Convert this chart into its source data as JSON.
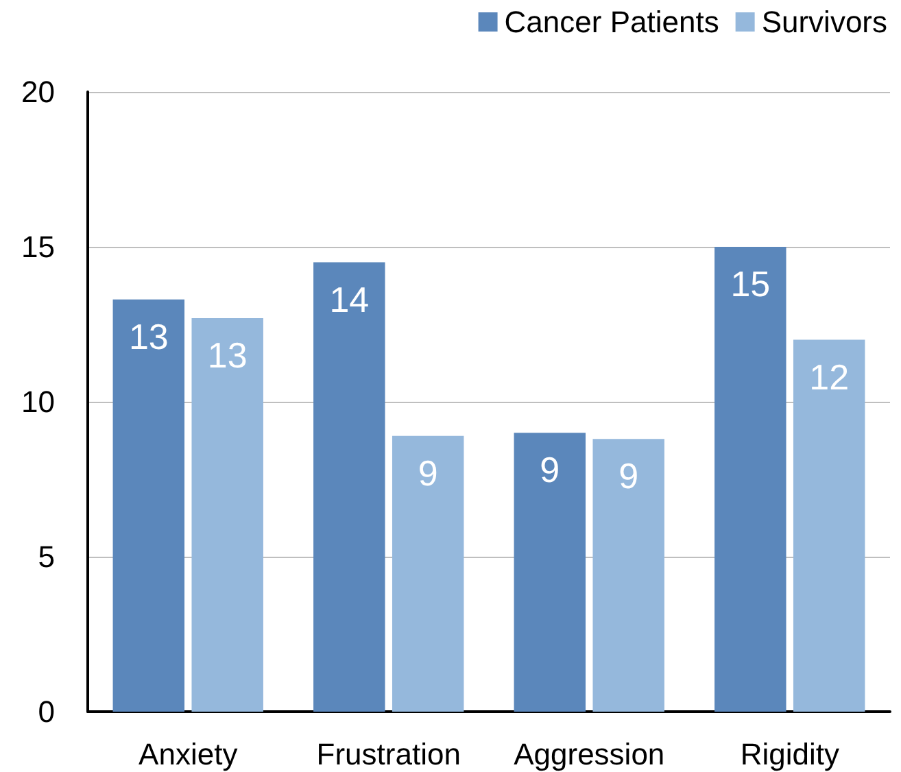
{
  "chart_data": {
    "type": "bar",
    "categories": [
      "Anxiety",
      "Frustration",
      "Aggression",
      "Rigidity"
    ],
    "series": [
      {
        "name": "Cancer Patients",
        "color": "#5b87bb",
        "values": [
          13.3,
          14.5,
          9.0,
          15.0
        ],
        "value_labels": [
          "13",
          "14",
          "9",
          "15"
        ]
      },
      {
        "name": "Survivors",
        "color": "#95b8dc",
        "values": [
          12.7,
          8.9,
          8.8,
          12.0
        ],
        "value_labels": [
          "13",
          "9",
          "9",
          "12"
        ]
      }
    ],
    "ylim": [
      0,
      20
    ],
    "yticks": [
      0,
      5,
      10,
      15,
      20
    ],
    "grid": "y",
    "legend": "top right"
  }
}
